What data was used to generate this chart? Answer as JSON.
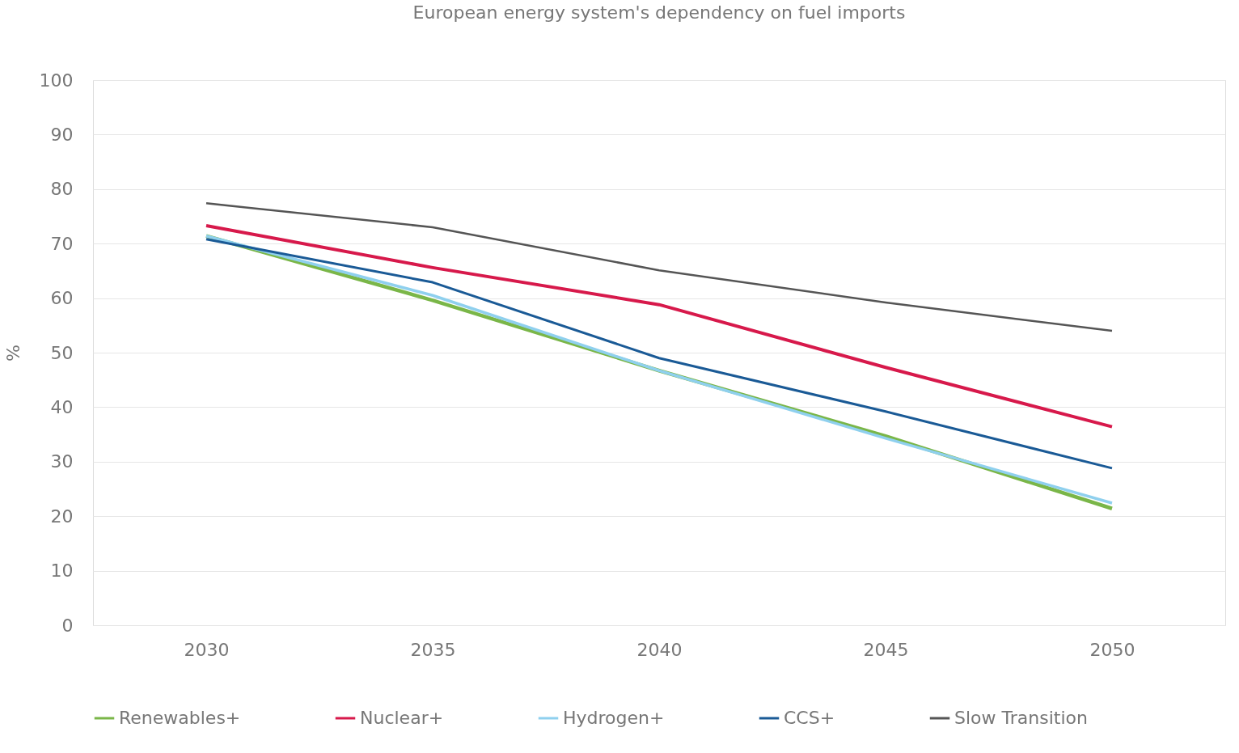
{
  "chart_data": {
    "type": "line",
    "title": "European energy system's dependency on fuel imports",
    "ylabel": "%",
    "categories": [
      "2030",
      "2035",
      "2040",
      "2045",
      "2050"
    ],
    "series": [
      {
        "name": "Renewables+",
        "color": "#7ab648",
        "values": [
          71.4,
          59.6,
          46.7,
          34.7,
          21.4
        ]
      },
      {
        "name": "Nuclear+",
        "color": "#d7194b",
        "values": [
          73.3,
          65.6,
          58.8,
          47.3,
          36.4
        ]
      },
      {
        "name": "Hydrogen+",
        "color": "#8fd0ee",
        "values": [
          71.4,
          60.5,
          46.7,
          34.3,
          22.4
        ]
      },
      {
        "name": "CCS+",
        "color": "#1a5a96",
        "values": [
          70.8,
          62.9,
          49.0,
          39.2,
          28.8
        ]
      },
      {
        "name": "Slow Transition",
        "color": "#555555",
        "values": [
          77.4,
          73.0,
          65.1,
          59.2,
          54.0
        ]
      }
    ],
    "ylim": [
      0,
      100
    ],
    "yticks": [
      0,
      10,
      20,
      30,
      40,
      50,
      60,
      70,
      80,
      90,
      100
    ],
    "grid": "y",
    "legend": "bottom",
    "marker": "none",
    "line_style": "solid"
  }
}
